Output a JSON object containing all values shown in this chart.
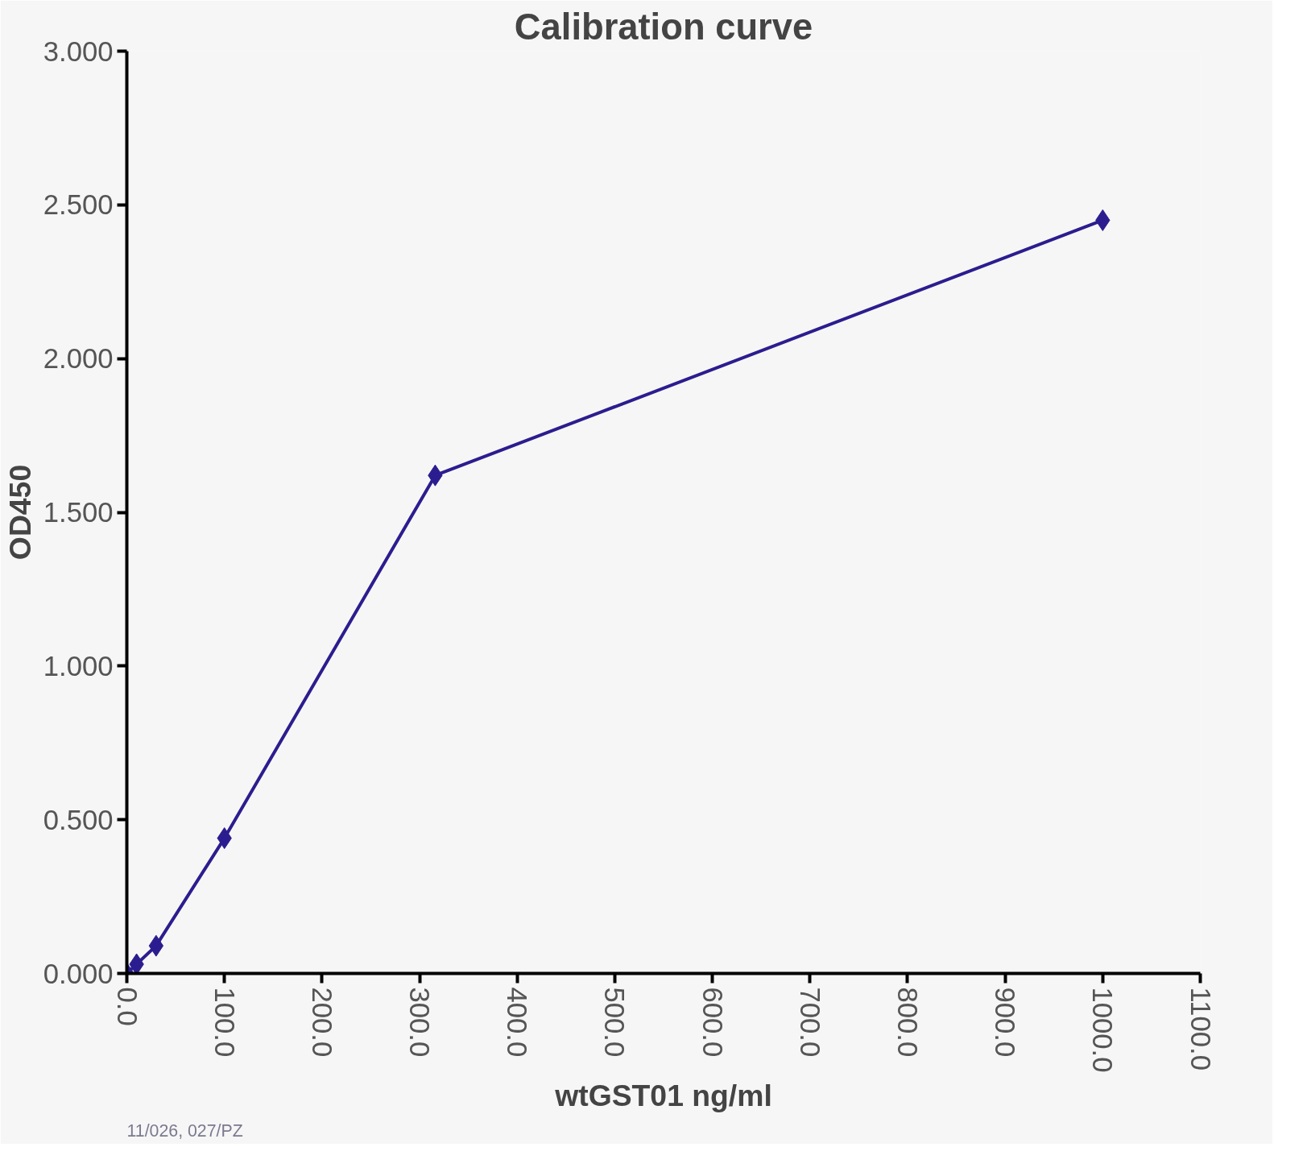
{
  "chart_data": {
    "type": "line",
    "title": "Calibration curve",
    "xlabel": "wtGST01 ng/ml",
    "ylabel": "OD450",
    "x": [
      0,
      10,
      30,
      100,
      316,
      1000
    ],
    "series": [
      {
        "color": "#2b1d8f",
        "values": [
          0.0,
          0.03,
          0.09,
          0.44,
          1.62,
          2.45
        ]
      }
    ],
    "xlim": [
      0,
      1100
    ],
    "ylim": [
      0,
      3
    ],
    "xticks": [
      {
        "value": 0,
        "label": "0.0"
      },
      {
        "value": 100,
        "label": "100.0"
      },
      {
        "value": 200,
        "label": "200.0"
      },
      {
        "value": 300,
        "label": "300.0"
      },
      {
        "value": 400,
        "label": "400.0"
      },
      {
        "value": 500,
        "label": "500.0"
      },
      {
        "value": 600,
        "label": "600.0"
      },
      {
        "value": 700,
        "label": "700.0"
      },
      {
        "value": 800,
        "label": "800.0"
      },
      {
        "value": 900,
        "label": "900.0"
      },
      {
        "value": 1000,
        "label": "1000.0"
      },
      {
        "value": 1100,
        "label": "1100.0"
      }
    ],
    "yticks": [
      {
        "value": 0,
        "label": "0.000"
      },
      {
        "value": 0.5,
        "label": "0.500"
      },
      {
        "value": 1,
        "label": "1.000"
      },
      {
        "value": 1.5,
        "label": "1.500"
      },
      {
        "value": 2,
        "label": "2.000"
      },
      {
        "value": 2.5,
        "label": "2.500"
      },
      {
        "value": 3,
        "label": "3.000"
      }
    ],
    "grid": false,
    "marker": "diamond",
    "line_style": "solid",
    "annotations": [
      "11/026, 027/PZ"
    ]
  }
}
